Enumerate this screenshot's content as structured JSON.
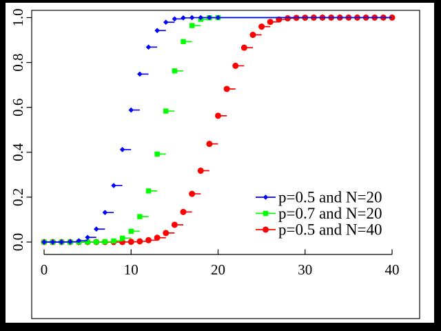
{
  "window": {
    "frame_color": "#000000",
    "canvas_color": "#ffffff"
  },
  "chart_data": {
    "type": "line",
    "subtype": "step-cdf",
    "title": "",
    "xlabel": "",
    "ylabel": "",
    "xlim": [
      0,
      40
    ],
    "ylim": [
      0,
      1
    ],
    "grid": false,
    "axis_color": "#000000",
    "text_color": "#000000",
    "x_ticks": [
      0,
      10,
      20,
      30,
      40
    ],
    "x_tick_labels": [
      "0",
      "10",
      "20",
      "30",
      "40"
    ],
    "y_ticks": [
      0.0,
      0.2,
      0.4,
      0.6,
      0.8,
      1.0
    ],
    "y_tick_labels": [
      "0.0",
      "0.2",
      "0.4",
      "0.6",
      "0.8",
      "1.0"
    ],
    "legend_position": "inside-bottom-right",
    "draw_order": [
      2,
      1,
      0
    ],
    "series": [
      {
        "name": "p=0.5 and N=20",
        "color": "#0000ff",
        "marker": "diamond",
        "p": 0.5,
        "N": 20,
        "x": [
          0,
          1,
          2,
          3,
          4,
          5,
          6,
          7,
          8,
          9,
          10,
          11,
          12,
          13,
          14,
          15,
          16,
          17,
          18,
          19,
          20
        ],
        "y": [
          1e-06,
          2e-05,
          0.0002,
          0.0013,
          0.0059,
          0.0207,
          0.0577,
          0.1316,
          0.2517,
          0.4119,
          0.5881,
          0.7483,
          0.8684,
          0.9423,
          0.9793,
          0.9941,
          0.9987,
          0.9998,
          1,
          1,
          1
        ]
      },
      {
        "name": "p=0.7 and N=20",
        "color": "#00ff00",
        "marker": "square",
        "p": 0.7,
        "N": 20,
        "x": [
          0,
          1,
          2,
          3,
          4,
          5,
          6,
          7,
          8,
          9,
          10,
          11,
          12,
          13,
          14,
          15,
          16,
          17,
          18,
          19,
          20
        ],
        "y": [
          0,
          0,
          0,
          1e-06,
          6e-06,
          4e-05,
          0.0003,
          0.0013,
          0.0051,
          0.0171,
          0.048,
          0.1133,
          0.2277,
          0.392,
          0.5836,
          0.7625,
          0.8929,
          0.9645,
          0.9924,
          0.9992,
          1
        ]
      },
      {
        "name": "p=0.5 and N=40",
        "color": "#ff0000",
        "marker": "circle",
        "p": 0.5,
        "N": 40,
        "x": [
          0,
          1,
          2,
          3,
          4,
          5,
          6,
          7,
          8,
          9,
          10,
          11,
          12,
          13,
          14,
          15,
          16,
          17,
          18,
          19,
          20,
          21,
          22,
          23,
          24,
          25,
          26,
          27,
          28,
          29,
          30,
          31,
          32,
          33,
          34,
          35,
          36,
          37,
          38,
          39,
          40
        ],
        "y": [
          0,
          0,
          0,
          0,
          0,
          1e-06,
          4e-06,
          2e-05,
          0.0001,
          0.0003,
          0.0011,
          0.0032,
          0.0083,
          0.0192,
          0.0403,
          0.0769,
          0.1341,
          0.2148,
          0.3179,
          0.4373,
          0.5627,
          0.6821,
          0.7852,
          0.8659,
          0.9231,
          0.9597,
          0.9808,
          0.9917,
          0.9968,
          0.9989,
          0.9997,
          0.9999,
          1,
          1,
          1,
          1,
          1,
          1,
          1,
          1,
          1
        ]
      }
    ]
  }
}
